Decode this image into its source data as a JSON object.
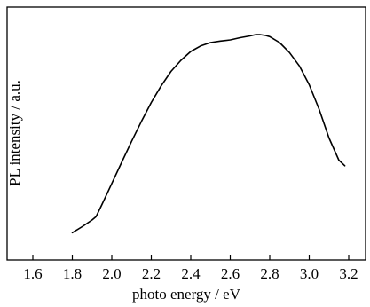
{
  "chart_data": {
    "type": "line",
    "title": "",
    "xlabel": "photo energy / eV",
    "ylabel": "PL intensity / a.u.",
    "xlim": [
      1.6,
      3.25
    ],
    "ylim": [
      0,
      1
    ],
    "x_ticks": [
      1.6,
      1.8,
      2.0,
      2.2,
      2.4,
      2.6,
      2.8,
      3.0,
      3.2
    ],
    "x_tick_labels": [
      "1.6",
      "1.8",
      "2.0",
      "2.2",
      "2.4",
      "2.6",
      "2.8",
      "3.0",
      "3.2"
    ],
    "y_ticks_shown": false,
    "grid": false,
    "legend": "none",
    "series": [
      {
        "color": "#000000",
        "x": [
          1.8,
          1.85,
          1.9,
          1.92,
          1.95,
          2.0,
          2.05,
          2.1,
          2.15,
          2.2,
          2.25,
          2.3,
          2.35,
          2.4,
          2.45,
          2.5,
          2.55,
          2.6,
          2.62,
          2.65,
          2.7,
          2.73,
          2.75,
          2.78,
          2.8,
          2.85,
          2.9,
          2.95,
          3.0,
          3.05,
          3.1,
          3.15,
          3.18
        ],
        "y": [
          0.103,
          0.13,
          0.16,
          0.175,
          0.23,
          0.325,
          0.42,
          0.515,
          0.605,
          0.69,
          0.765,
          0.83,
          0.88,
          0.92,
          0.945,
          0.96,
          0.967,
          0.972,
          0.976,
          0.982,
          0.99,
          0.996,
          0.996,
          0.992,
          0.987,
          0.96,
          0.915,
          0.855,
          0.77,
          0.66,
          0.53,
          0.43,
          0.405
        ]
      }
    ]
  }
}
